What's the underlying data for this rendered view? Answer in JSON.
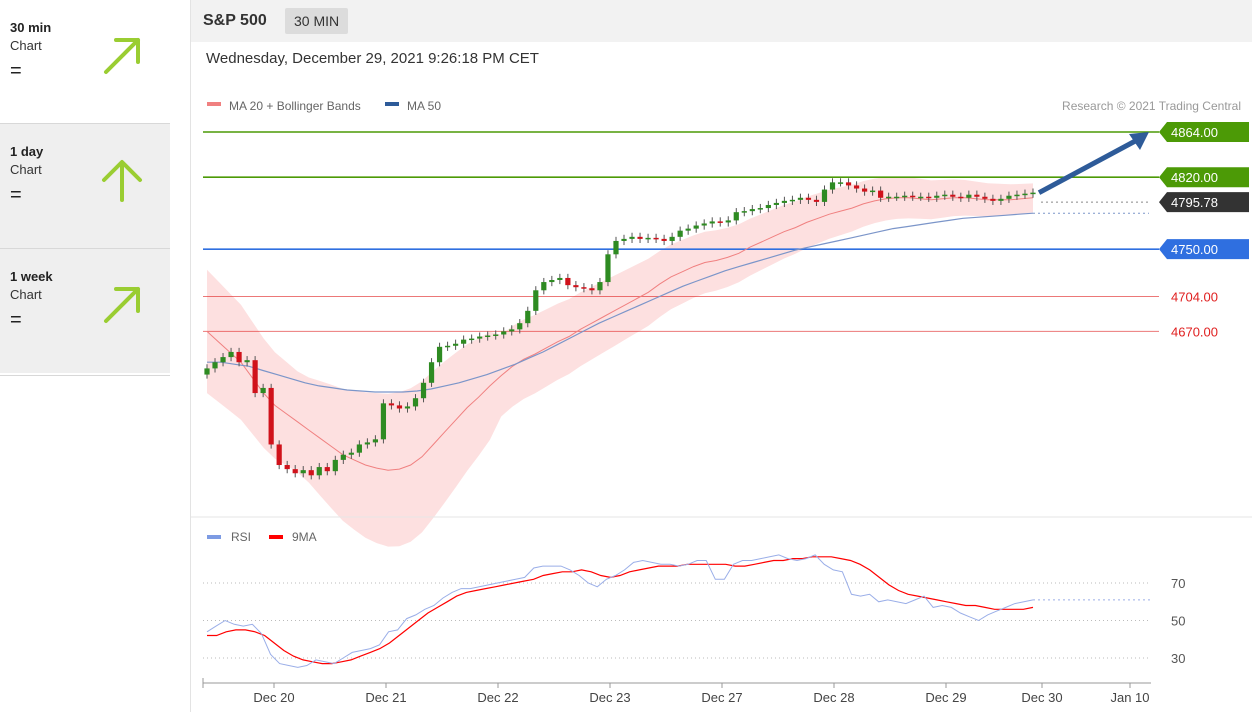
{
  "sidebar": {
    "items": [
      {
        "name": "30 min",
        "sub": "Chart",
        "eq": "=",
        "icon": "arrow-up-right-icon"
      },
      {
        "name": "1 day",
        "sub": "Chart",
        "eq": "=",
        "icon": "arrow-up-icon"
      },
      {
        "name": "1 week",
        "sub": "Chart",
        "eq": "=",
        "icon": "arrow-up-right-icon"
      }
    ],
    "arrow_color": "#9acd32"
  },
  "header": {
    "symbol": "S&P 500",
    "timeframe": "30 MIN",
    "datetime": "Wednesday, December 29, 2021 9:26:18 PM CET"
  },
  "chart_data": [
    {
      "type": "line",
      "title": "S&P 500",
      "copyright": "Research © 2021 Trading Central",
      "legend": [
        {
          "label": "MA 20 + Bollinger Bands",
          "color": "#f08080"
        },
        {
          "label": "MA 50",
          "color": "#2e5b99"
        }
      ],
      "levels": [
        {
          "value": 4864.0,
          "label": "4864.00",
          "kind": "resistance",
          "color": "#4c9a06"
        },
        {
          "value": 4820.0,
          "label": "4820.00",
          "kind": "resistance",
          "color": "#4c9a06"
        },
        {
          "value": 4795.78,
          "label": "4795.78",
          "kind": "last",
          "color": "#333333"
        },
        {
          "value": 4750.0,
          "label": "4750.00",
          "kind": "pivot",
          "color": "#2f6fe0"
        },
        {
          "value": 4704.0,
          "label": "4704.00",
          "kind": "support",
          "color": "#e02020"
        },
        {
          "value": 4670.0,
          "label": "4670.00",
          "kind": "support",
          "color": "#e02020"
        }
      ],
      "x_ticks": [
        "Dec 20",
        "Dec 21",
        "Dec 22",
        "Dec 23",
        "Dec 27",
        "Dec 28",
        "Dec 29",
        "Dec 30",
        "Jan 10"
      ],
      "close": [
        4634,
        4640,
        4645,
        4650,
        4640,
        4642,
        4610,
        4615,
        4560,
        4540,
        4536,
        4532,
        4535,
        4530,
        4538,
        4534,
        4545,
        4550,
        4552,
        4560,
        4562,
        4565,
        4600,
        4598,
        4595,
        4597,
        4605,
        4620,
        4640,
        4655,
        4656,
        4658,
        4662,
        4663,
        4665,
        4666,
        4667,
        4670,
        4672,
        4678,
        4690,
        4710,
        4718,
        4720,
        4722,
        4715,
        4713,
        4712,
        4710,
        4718,
        4745,
        4758,
        4760,
        4762,
        4760,
        4761,
        4760,
        4758,
        4762,
        4768,
        4770,
        4773,
        4775,
        4777,
        4776,
        4778,
        4786,
        4787,
        4789,
        4790,
        4793,
        4795,
        4797,
        4798,
        4800,
        4798,
        4796,
        4808,
        4815,
        4815,
        4812,
        4809,
        4806,
        4807,
        4800,
        4801,
        4801,
        4802,
        4801,
        4801,
        4800,
        4802,
        4803,
        4801,
        4800,
        4803,
        4801,
        4799,
        4797,
        4799,
        4802,
        4803,
        4804,
        4805
      ],
      "ma20": [
        4670,
        4660,
        4650,
        4640,
        4625,
        4610,
        4598,
        4590,
        4582,
        4574,
        4566,
        4558,
        4550,
        4545,
        4540,
        4537,
        4535,
        4536,
        4540,
        4548,
        4560,
        4572,
        4584,
        4596,
        4606,
        4617,
        4627,
        4636,
        4643,
        4648,
        4654,
        4660,
        4665,
        4672,
        4678,
        4684,
        4690,
        4696,
        4702,
        4708,
        4716,
        4723,
        4728,
        4733,
        4737,
        4739,
        4742,
        4746,
        4752,
        4757,
        4762,
        4767,
        4771,
        4776,
        4780,
        4784,
        4787,
        4790,
        4794,
        4797,
        4799,
        4800,
        4800,
        4799,
        4798,
        4799,
        4800,
        4800,
        4799,
        4798,
        4798,
        4798,
        4799,
        4800
      ],
      "ma50": [
        4640,
        4640,
        4638,
        4636,
        4632,
        4628,
        4624,
        4620,
        4617,
        4615,
        4613,
        4612,
        4611,
        4611,
        4611,
        4612,
        4614,
        4617,
        4620,
        4624,
        4628,
        4633,
        4638,
        4644,
        4650,
        4657,
        4664,
        4671,
        4678,
        4684,
        4690,
        4696,
        4702,
        4708,
        4714,
        4719,
        4724,
        4729,
        4733,
        4737,
        4741,
        4745,
        4749,
        4752,
        4755,
        4758,
        4761,
        4764,
        4767,
        4770,
        4772,
        4774,
        4776,
        4778,
        4780,
        4781,
        4782,
        4783,
        4784,
        4785
      ],
      "forecast_target": 4864.0
    },
    {
      "type": "line",
      "legend": [
        {
          "label": "RSI",
          "color": "#7d9be3"
        },
        {
          "label": "9MA",
          "color": "#ff0000"
        }
      ],
      "y_ticks": [
        70,
        50,
        30
      ],
      "rsi": [
        44,
        47,
        50,
        48,
        47,
        48,
        43,
        32,
        27,
        26,
        25,
        26,
        29,
        28,
        27,
        30,
        33,
        34,
        35,
        37,
        44,
        45,
        51,
        53,
        56,
        58,
        62,
        65,
        67,
        67,
        68,
        69,
        70,
        71,
        72,
        73,
        78,
        79,
        79,
        79,
        77,
        74,
        70,
        68,
        72,
        74,
        77,
        81,
        82,
        81,
        80,
        80,
        79,
        80,
        82,
        82,
        72,
        72,
        80,
        82,
        82,
        83,
        84,
        85,
        83,
        82,
        83,
        85,
        80,
        77,
        76,
        64,
        63,
        64,
        60,
        61,
        60,
        59,
        61,
        63,
        57,
        58,
        57,
        54,
        52,
        50,
        53,
        55,
        57,
        59,
        60,
        61
      ],
      "ma9": [
        42,
        42,
        44,
        45,
        45,
        44,
        42,
        38,
        34,
        31,
        29,
        28,
        27,
        27,
        28,
        29,
        31,
        33,
        35,
        38,
        42,
        46,
        50,
        54,
        57,
        60,
        63,
        65,
        66,
        67,
        68,
        69,
        70,
        71,
        72,
        74,
        75,
        76,
        76,
        77,
        76,
        74,
        73,
        74,
        76,
        77,
        78,
        79,
        79,
        79,
        80,
        80,
        80,
        80,
        80,
        79,
        79,
        80,
        81,
        82,
        82,
        83,
        83,
        84,
        84,
        84,
        83,
        82,
        80,
        77,
        73,
        69,
        66,
        64,
        63,
        62,
        61,
        60,
        59,
        58,
        58,
        57,
        56,
        56,
        56,
        56,
        57
      ]
    }
  ]
}
